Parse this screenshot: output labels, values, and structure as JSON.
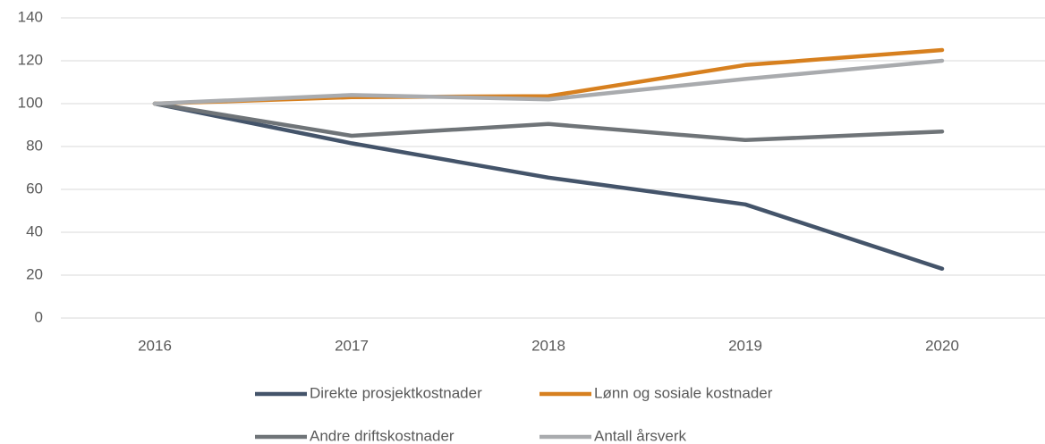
{
  "chart_data": {
    "type": "line",
    "categories": [
      "2016",
      "2017",
      "2018",
      "2019",
      "2020"
    ],
    "series": [
      {
        "name": "Direkte prosjektkostnader",
        "color": "#44546a",
        "values": [
          100,
          81.5,
          65.5,
          53,
          23
        ]
      },
      {
        "name": "Lønn og sosiale kostnader",
        "color": "#d7801f",
        "values": [
          100,
          103,
          103.5,
          118,
          125
        ]
      },
      {
        "name": "Andre driftskostnader",
        "color": "#6f7478",
        "values": [
          100,
          85,
          90.5,
          83,
          87
        ]
      },
      {
        "name": "Antall årsverk",
        "color": "#a9abae",
        "values": [
          100,
          104,
          102,
          111.5,
          120
        ]
      }
    ],
    "ylim": [
      0,
      140
    ],
    "yticks": [
      0,
      20,
      40,
      60,
      80,
      100,
      120,
      140
    ],
    "grid": true,
    "legend": "bottom"
  }
}
